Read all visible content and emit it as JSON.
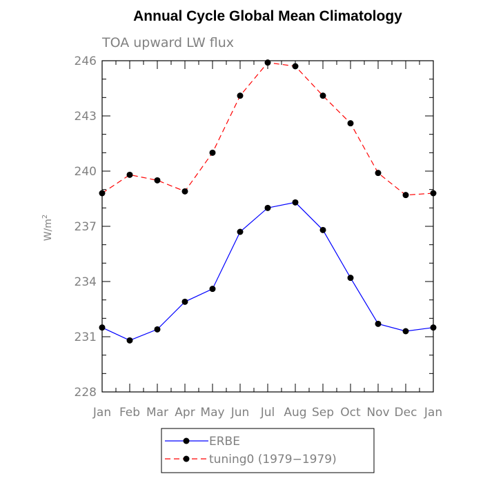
{
  "chart_data": {
    "type": "line",
    "title": "Annual Cycle Global Mean Climatology",
    "subtitle": "TOA upward LW flux",
    "xlabel": "",
    "ylabel": "W/m",
    "ylabel_sup": "2",
    "categories": [
      "Jan",
      "Feb",
      "Mar",
      "Apr",
      "May",
      "Jun",
      "Jul",
      "Aug",
      "Sep",
      "Oct",
      "Nov",
      "Dec",
      "Jan"
    ],
    "ylim": [
      228,
      246
    ],
    "yticks": [
      "228",
      "231",
      "234",
      "237",
      "240",
      "243",
      "246"
    ],
    "yticks_values": [
      228,
      231,
      234,
      237,
      240,
      243,
      246
    ],
    "grid": false,
    "legend_position": "bottom-center",
    "series": [
      {
        "name": "ERBE",
        "color": "#0000ff",
        "dash": "solid",
        "values": [
          231.5,
          230.8,
          231.4,
          232.9,
          233.6,
          236.7,
          238.0,
          238.3,
          236.8,
          234.2,
          231.7,
          231.3,
          231.5
        ]
      },
      {
        "name": "tuning0 (1979−1979)",
        "color": "#ff0000",
        "dash": "dashed",
        "values": [
          238.8,
          239.8,
          239.5,
          238.9,
          241.0,
          244.1,
          245.9,
          245.7,
          244.1,
          242.6,
          239.9,
          238.7,
          238.8
        ]
      }
    ]
  }
}
